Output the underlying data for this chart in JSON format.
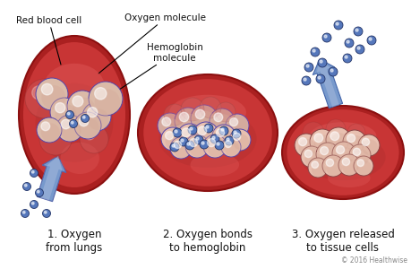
{
  "background_color": "#ffffff",
  "copyright": "© 2016 Healthwise",
  "labels": {
    "red_blood_cell": "Red blood cell",
    "oxygen_molecule": "Oxygen molecule",
    "hemoglobin_molecule": "Hemoglobin\nmolecule",
    "step1": "1. Oxygen\nfrom lungs",
    "step2": "2. Oxygen bonds\nto hemoglobin",
    "step3": "3. Oxygen released\nto tissue cells"
  },
  "cell_color_outer": "#c0302a",
  "cell_color_inner": "#c83030",
  "cell_edge_color": "#8b1010",
  "cell_highlight": "#dd6060",
  "hemo_color": "#e8c8b8",
  "hemo_edge_color": "#6644aa",
  "hemo_shadow_color": "#bb9988",
  "oxy_free_color": "#5577bb",
  "oxy_free_edge": "#223366",
  "arrow_color": "#7799cc",
  "arrow_edge": "#4466aa",
  "text_color": "#111111"
}
